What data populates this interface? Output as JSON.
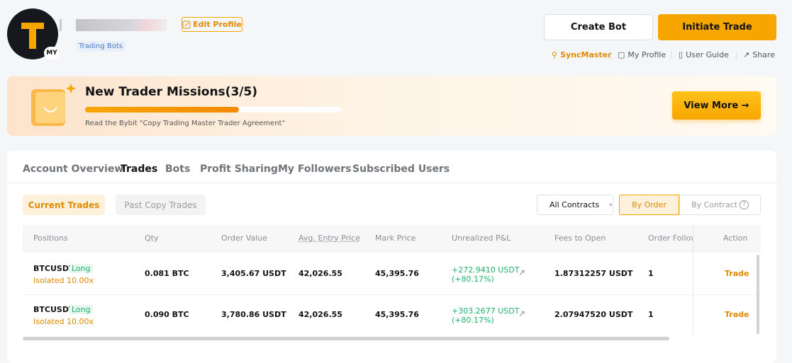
{
  "header": {
    "avatar_badge": "MY",
    "edit_profile": "Edit Profile",
    "tag": "Trading Bots",
    "create_bot": "Create Bot",
    "initiate_trade": "Initiate Trade",
    "links": [
      "SyncMaster",
      "My Profile",
      "User Guide",
      "Share"
    ]
  },
  "banner": {
    "title": "New Trader Missions(3/5)",
    "progress": 60,
    "subtitle": "Read the Bybit \"Copy Trading Master Trader Agreement\"",
    "button": "View More"
  },
  "tabs": [
    "Account Overview",
    "Trades",
    "Bots",
    "Profit Sharing",
    "My Followers",
    "Subscribed Users"
  ],
  "subtabs": [
    "Current Trades",
    "Past Copy Trades"
  ],
  "filter": "All Contracts",
  "toggle": [
    "By Order",
    "By Contract"
  ],
  "table": {
    "columns": [
      "Positions",
      "Qty",
      "Order Value",
      "Avg. Entry Price",
      "Mark Price",
      "Unrealized P&L",
      "Fees to Open",
      "Order Followers",
      "Action"
    ],
    "rows": [
      {
        "symbol": "BTCUSDT",
        "side": "Long",
        "margin": "Isolated 10.00x",
        "qty": "0.081 BTC",
        "order_value": "3,405.67 USDT",
        "entry": "42,026.55",
        "mark": "45,395.76",
        "pnl": "+272.9410 USDT",
        "pnl_pct": "(+80.17%)",
        "fees": "1.87312257 USDT",
        "followers": "1",
        "action": "Trade"
      },
      {
        "symbol": "BTCUSDT",
        "side": "Long",
        "margin": "Isolated 10.00x",
        "qty": "0.090 BTC",
        "order_value": "3,780.86 USDT",
        "entry": "42,026.55",
        "mark": "45,395.76",
        "pnl": "+303.2677 USDT",
        "pnl_pct": "(+80.17%)",
        "fees": "2.07947520 USDT",
        "followers": "1",
        "action": "Trade"
      }
    ]
  }
}
